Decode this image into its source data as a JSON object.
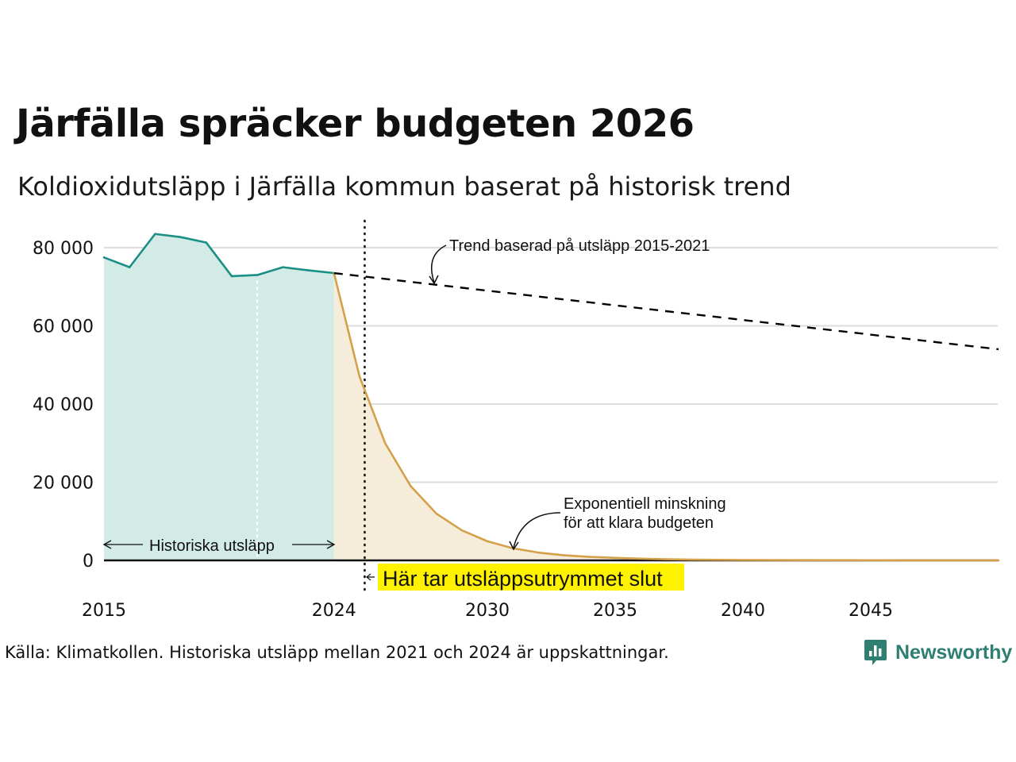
{
  "chart_data": {
    "type": "line",
    "title": "Järfälla spräcker budgeten 2026",
    "subtitle": "Koldioxidutsläpp i Järfälla kommun baserat på historisk trend",
    "xlim": [
      2015,
      2050
    ],
    "ylim": [
      0,
      85000
    ],
    "x_ticks": [
      2015,
      2024,
      2030,
      2035,
      2040,
      2045
    ],
    "y_ticks": [
      {
        "value": 0,
        "label": "0"
      },
      {
        "value": 20000,
        "label": "20 000"
      },
      {
        "value": 40000,
        "label": "40 000"
      },
      {
        "value": 60000,
        "label": "60 000"
      },
      {
        "value": 80000,
        "label": "80 000"
      }
    ],
    "grid": true,
    "series": [
      {
        "role": "historical",
        "color": "#1a8f86",
        "fill": "#d2ebe7",
        "x": [
          2015,
          2016,
          2017,
          2018,
          2019,
          2020,
          2021,
          2022,
          2023,
          2024
        ],
        "y": [
          77500,
          75000,
          83500,
          82700,
          81300,
          72700,
          73000,
          75000,
          74200,
          73500
        ]
      },
      {
        "role": "exponential",
        "color": "#d4a14a",
        "fill": "#f5ecda",
        "x": [
          2024,
          2025,
          2026,
          2027,
          2028,
          2029,
          2030,
          2031,
          2032,
          2033,
          2034,
          2035,
          2036,
          2037,
          2038,
          2040,
          2045,
          2050
        ],
        "y": [
          73500,
          47000,
          30000,
          19000,
          12000,
          7700,
          4900,
          3100,
          2000,
          1300,
          900,
          650,
          450,
          300,
          200,
          100,
          30,
          0
        ]
      },
      {
        "role": "trend",
        "color": "#000000",
        "dashed": true,
        "x": [
          2024,
          2050
        ],
        "y": [
          73500,
          54000
        ]
      }
    ],
    "vertical_markers": [
      {
        "x": 2021,
        "style": "dotted-white"
      },
      {
        "x": 2025.2,
        "style": "dotted-black"
      }
    ],
    "annotations": {
      "trend_label": "Trend baserad på utsläpp 2015-2021",
      "exp_line1": "Exponentiell minskning",
      "exp_line2": "för att klara budgeten",
      "historic_label": "Historiska utsläpp",
      "budget_end_label": "Här tar utsläppsutrymmet slut",
      "budget_end_bg": "#fff200"
    }
  },
  "source_note": "Källa: Klimatkollen. Historiska utsläpp mellan 2021 och 2024 är uppskattningar.",
  "brand": {
    "name": "Newsworthy",
    "icon": "bar-chart-speech-icon",
    "color": "#2e7f72"
  }
}
